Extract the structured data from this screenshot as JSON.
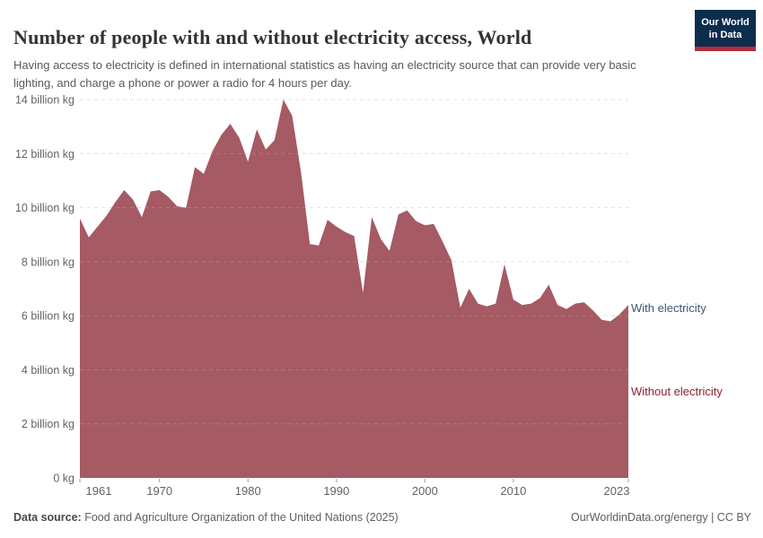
{
  "header": {
    "title": "Number of people with and without electricity access, World",
    "subtitle": "Having access to electricity is defined in international statistics as having an electricity source that can provide very basic lighting, and charge a phone or power a radio for 4 hours per day.",
    "logo": {
      "line1": "Our World",
      "line2": "in Data",
      "bg_color": "#0d2d4d",
      "accent_color": "#b02e40"
    }
  },
  "chart_data": {
    "type": "area",
    "title": "Number of people with and without electricity access, World",
    "x": [
      1961,
      1962,
      1963,
      1964,
      1965,
      1966,
      1967,
      1968,
      1969,
      1970,
      1971,
      1972,
      1973,
      1974,
      1975,
      1976,
      1977,
      1978,
      1979,
      1980,
      1981,
      1982,
      1983,
      1984,
      1985,
      1986,
      1987,
      1988,
      1989,
      1990,
      1991,
      1992,
      1993,
      1994,
      1995,
      1996,
      1997,
      1998,
      1999,
      2000,
      2001,
      2002,
      2003,
      2004,
      2005,
      2006,
      2007,
      2008,
      2009,
      2010,
      2011,
      2012,
      2013,
      2014,
      2015,
      2016,
      2017,
      2018,
      2019,
      2020,
      2021,
      2022,
      2023
    ],
    "series": [
      {
        "name": "Without electricity",
        "color": "#a2555f",
        "unit": "billion kg",
        "values": [
          9.6,
          8.9,
          9.3,
          9.7,
          10.2,
          10.65,
          10.3,
          9.65,
          10.6,
          10.65,
          10.4,
          10.05,
          10.0,
          11.5,
          11.25,
          12.1,
          12.7,
          13.1,
          12.6,
          11.7,
          12.9,
          12.15,
          12.5,
          14.0,
          13.4,
          11.3,
          8.65,
          8.6,
          9.55,
          9.3,
          9.1,
          8.95,
          6.85,
          9.65,
          8.85,
          8.4,
          9.75,
          9.9,
          9.5,
          9.35,
          9.4,
          8.75,
          8.05,
          6.3,
          7.0,
          6.45,
          6.35,
          6.45,
          7.9,
          6.6,
          6.4,
          6.45,
          6.65,
          7.15,
          6.4,
          6.25,
          6.45,
          6.5,
          6.2,
          5.85,
          5.8,
          6.05,
          6.4
        ]
      }
    ],
    "end_labels": [
      {
        "text": "With electricity",
        "color": "#3d5678"
      },
      {
        "text": "Without electricity",
        "color": "#8b2333"
      }
    ],
    "y_ticks": [
      {
        "value": 0,
        "label": "0 kg"
      },
      {
        "value": 2,
        "label": "2 billion kg"
      },
      {
        "value": 4,
        "label": "4 billion kg"
      },
      {
        "value": 6,
        "label": "6 billion kg"
      },
      {
        "value": 8,
        "label": "8 billion kg"
      },
      {
        "value": 10,
        "label": "10 billion kg"
      },
      {
        "value": 12,
        "label": "12 billion kg"
      },
      {
        "value": 14,
        "label": "14 billion kg"
      }
    ],
    "x_ticks": [
      1961,
      1970,
      1980,
      1990,
      2000,
      2010,
      2023
    ],
    "ylim": [
      0,
      14
    ],
    "xlim": [
      1961,
      2023
    ],
    "grid": "horizontal dashed",
    "legend_position": "right edge labels",
    "colors": {
      "grid": "#dadada",
      "axis_text": "#636363",
      "tick": "#9a9a9a"
    }
  },
  "footer": {
    "source_label": "Data source:",
    "source_text": " Food and Agriculture Organization of the United Nations (2025)",
    "link_text": "OurWorldinData.org/energy",
    "separator": " | ",
    "license_text": "CC BY"
  }
}
